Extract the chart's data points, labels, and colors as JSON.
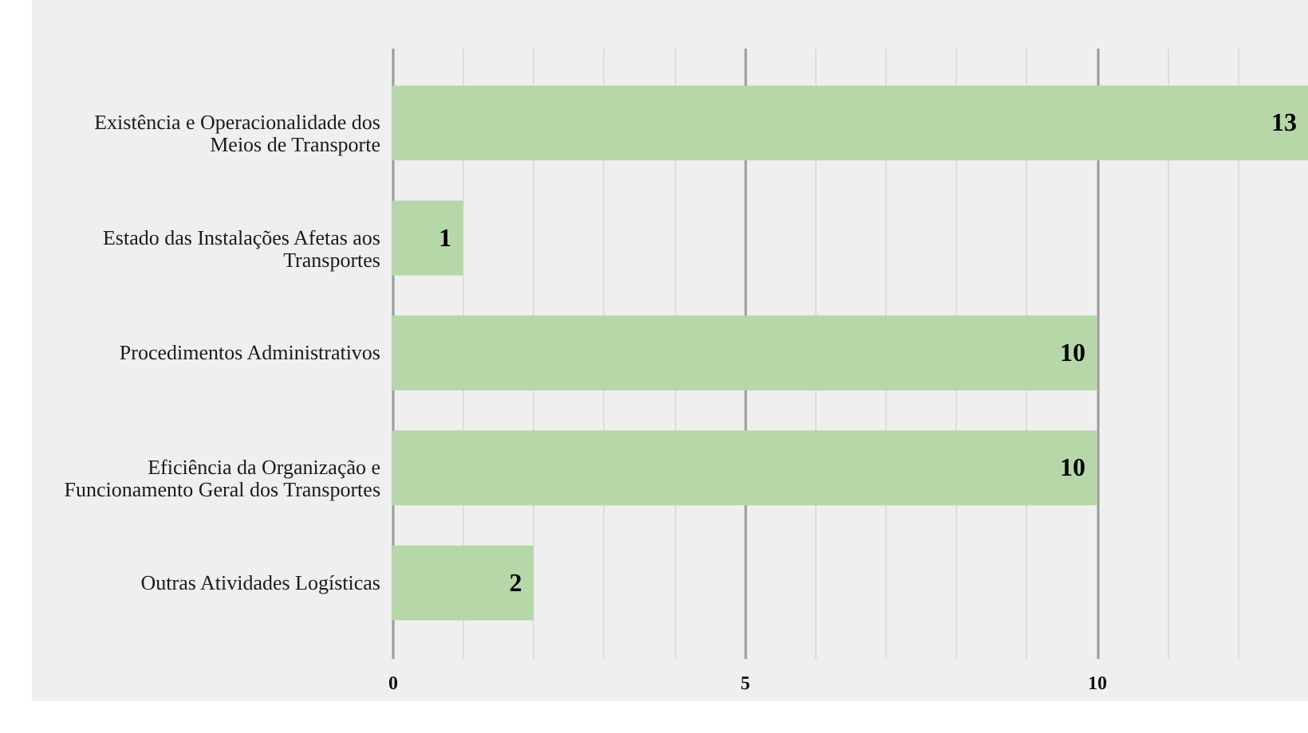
{
  "chart_data": {
    "type": "bar",
    "orientation": "horizontal",
    "categories": [
      "Existência e Operacionalidade dos Meios de Transporte",
      "Estado das Instalações Afetas aos Transportes",
      "Procedimentos Administrativos",
      "Eficiência da Organização e Funcionamento Geral dos Transportes",
      "Outras Atividades Logísticas"
    ],
    "values": [
      13,
      1,
      10,
      10,
      2
    ],
    "color": "#b6d7a8",
    "xlim": [
      0,
      13
    ],
    "xticks": [
      0,
      {
        "value": 1,
        "label": null
      },
      {
        "value": 2,
        "label": null
      },
      {
        "value": 3,
        "label": null
      },
      {
        "value": 4,
        "label": null
      },
      5,
      {
        "value": 6,
        "label": null
      },
      {
        "value": 7,
        "label": null
      },
      {
        "value": 8,
        "label": null
      },
      {
        "value": 9,
        "label": null
      },
      10,
      {
        "value": 11,
        "label": null
      },
      {
        "value": 12,
        "label": null
      }
    ],
    "grid": "x",
    "data_labels": true
  }
}
